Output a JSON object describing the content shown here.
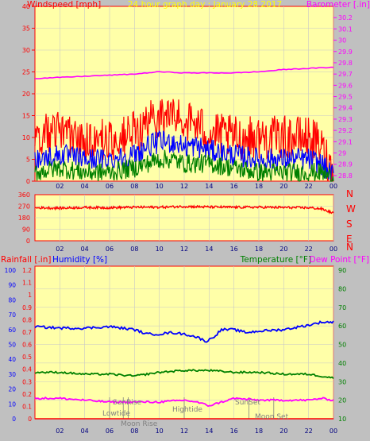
{
  "header": {
    "windspeed_label": "Windspeed [mph]",
    "title": "24 hour graph day : January 28 2017",
    "barometer_label": "Barometer [.in]"
  },
  "colors": {
    "plot_bg": "#ffffa8",
    "frame": "#ff0000",
    "grid": "#c8c8c8",
    "wind_gust": "#ff0000",
    "wind_avg": "#0000ff",
    "wind_low": "#008000",
    "barometer": "#ff00ff",
    "humidity": "#0000ff",
    "temperature": "#008000",
    "dewpoint": "#ff00ff",
    "rain_axis": "#ff0000",
    "humidity_axis": "#0000ff"
  },
  "direction": {
    "letters": [
      "N",
      "W",
      "S",
      "E",
      "N"
    ]
  },
  "bottom_header": {
    "rainfall_label": "Rainfall [.in]",
    "humidity_label": "Humidity [%]",
    "temperature_label": "Temperature [°F]",
    "dewpoint_label": "Dew Point [°F]"
  },
  "events": {
    "sunrise": "SunRise",
    "lowtide": "Lowtide",
    "moonrise": "Moon Rise",
    "hightide": "Hightide",
    "sunset": "SunSet",
    "moonset": "Moon Set"
  },
  "chart_data": [
    {
      "type": "line",
      "name": "wind-barometer",
      "x_ticks": [
        "02",
        "04",
        "06",
        "08",
        "10",
        "12",
        "14",
        "16",
        "18",
        "20",
        "22",
        "00"
      ],
      "y_left": {
        "label": "Windspeed [mph]",
        "range": [
          0,
          40
        ],
        "ticks": [
          "0",
          "5",
          "10",
          "15",
          "20",
          "25",
          "30",
          "35",
          "40"
        ]
      },
      "y_right": {
        "label": "Barometer [.in]",
        "range": [
          28.75,
          30.3
        ],
        "ticks": [
          "28.8",
          "28.9",
          "29",
          "29.1",
          "29.2",
          "29.3",
          "29.4",
          "29.5",
          "29.6",
          "29.7",
          "29.8",
          "29.9",
          "30",
          "30.1",
          "30.2"
        ]
      },
      "series": [
        {
          "name": "gust",
          "hours": [
            0,
            2,
            4,
            6,
            8,
            9,
            10,
            11,
            12,
            13,
            14,
            16,
            18,
            20,
            22,
            23,
            24
          ],
          "values": [
            10,
            11,
            10,
            9,
            11,
            13,
            15,
            15,
            14,
            13,
            11,
            10,
            10,
            10,
            10,
            8,
            2
          ]
        },
        {
          "name": "average",
          "hours": [
            0,
            2,
            4,
            6,
            8,
            9,
            10,
            11,
            12,
            13,
            14,
            16,
            18,
            20,
            22,
            23,
            24
          ],
          "values": [
            5,
            6,
            5,
            5,
            6,
            8,
            9,
            9,
            8,
            8,
            7,
            6,
            5,
            5,
            5,
            4,
            1
          ]
        },
        {
          "name": "low",
          "hours": [
            0,
            2,
            4,
            6,
            8,
            9,
            10,
            11,
            12,
            13,
            14,
            16,
            18,
            20,
            22,
            23,
            24
          ],
          "values": [
            2,
            3,
            2,
            2,
            3,
            4,
            5,
            5,
            4,
            4,
            4,
            3,
            2,
            2,
            2,
            2,
            0.5
          ]
        },
        {
          "name": "barometer",
          "hours": [
            0,
            2,
            4,
            6,
            8,
            10,
            12,
            14,
            16,
            18,
            20,
            22,
            24
          ],
          "values": [
            29.66,
            29.67,
            29.68,
            29.69,
            29.7,
            29.72,
            29.71,
            29.71,
            29.71,
            29.72,
            29.74,
            29.75,
            29.76
          ]
        }
      ]
    },
    {
      "type": "line",
      "name": "wind-direction",
      "x_ticks": [
        "02",
        "04",
        "06",
        "08",
        "10",
        "12",
        "14",
        "16",
        "18",
        "20",
        "22",
        "00"
      ],
      "y_left": {
        "range": [
          0,
          360
        ],
        "ticks": [
          "0",
          "90",
          "180",
          "270",
          "360"
        ]
      },
      "series": [
        {
          "name": "direction",
          "hours": [
            0,
            2,
            4,
            6,
            8,
            10,
            12,
            14,
            16,
            18,
            20,
            22,
            23,
            24
          ],
          "values": [
            258,
            255,
            260,
            258,
            262,
            262,
            268,
            264,
            262,
            262,
            260,
            258,
            250,
            215
          ]
        }
      ]
    },
    {
      "type": "line",
      "name": "humidity-temperature",
      "x_ticks": [
        "02",
        "04",
        "06",
        "08",
        "10",
        "12",
        "14",
        "16",
        "18",
        "20",
        "22",
        "00"
      ],
      "y_rain": {
        "label": "Rainfall [.in]",
        "range": [
          0,
          1.2
        ],
        "ticks": [
          "0",
          "0.1",
          "0.2",
          "0.3",
          "0.4",
          "0.5",
          "0.6",
          "0.7",
          "0.8",
          "0.9",
          "1",
          "1.1",
          "1.2"
        ]
      },
      "y_humidity": {
        "label": "Humidity [%]",
        "range": [
          0,
          100
        ],
        "ticks": [
          "0",
          "10",
          "20",
          "30",
          "40",
          "50",
          "60",
          "70",
          "80",
          "90",
          "100"
        ]
      },
      "y_right": {
        "label": "Temperature [°F]",
        "range": [
          10,
          90
        ],
        "ticks": [
          "10",
          "20",
          "30",
          "40",
          "50",
          "60",
          "70",
          "80",
          "90"
        ]
      },
      "series": [
        {
          "name": "humidity",
          "hours": [
            0,
            2,
            4,
            6,
            8,
            9,
            10,
            11,
            12,
            13,
            13.8,
            14.5,
            15,
            16,
            17,
            18,
            20,
            22,
            23,
            24
          ],
          "values": [
            62,
            61,
            61,
            62,
            60,
            57,
            57,
            58,
            57,
            55,
            52,
            56,
            60,
            60,
            58,
            59,
            60,
            63,
            65,
            65
          ]
        },
        {
          "name": "temperature",
          "hours": [
            0,
            2,
            4,
            6,
            8,
            10,
            12,
            14,
            16,
            18,
            20,
            22,
            24
          ],
          "values": [
            35,
            35,
            34,
            34,
            33,
            35,
            36,
            36,
            35,
            35,
            34,
            34,
            32
          ]
        },
        {
          "name": "dewpoint",
          "hours": [
            0,
            2,
            4,
            6,
            8,
            10,
            12,
            13,
            14,
            15,
            16,
            18,
            20,
            22,
            23,
            24
          ],
          "values": [
            21,
            21,
            20,
            19,
            19,
            19,
            20,
            19,
            17,
            19,
            21,
            20,
            20,
            20,
            21,
            20
          ]
        },
        {
          "name": "rainfall",
          "hours": [
            0,
            24
          ],
          "values": [
            0,
            0
          ]
        }
      ],
      "event_hours": {
        "sunrise": 7.1,
        "lowtide": 6.0,
        "moonrise": 7.5,
        "hightide": 12.0,
        "sunset": 17.2,
        "moonset": 19.2
      }
    }
  ]
}
